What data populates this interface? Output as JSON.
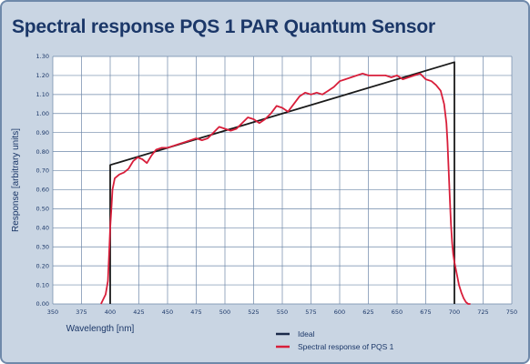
{
  "chart_data": {
    "type": "line",
    "title": "Spectral response PQS 1 PAR Quantum Sensor",
    "xlabel": "Wavelength [nm]",
    "ylabel": "Response [arbitrary units]",
    "xlim": [
      350,
      750
    ],
    "ylim": [
      0,
      1.3
    ],
    "x_ticks": [
      "350",
      "375",
      "400",
      "425",
      "450",
      "475",
      "500",
      "525",
      "550",
      "575",
      "600",
      "625",
      "650",
      "675",
      "700",
      "725",
      "750"
    ],
    "y_ticks": [
      "0.00",
      "0.10",
      "0.20",
      "0.30",
      "0.40",
      "0.50",
      "0.60",
      "0.70",
      "0.80",
      "0.90",
      "1.00",
      "1.10",
      "1.20",
      "1.30"
    ],
    "grid": true,
    "legend_position": "bottom-right",
    "series": [
      {
        "name": "Ideal",
        "color": "#1a1a1a",
        "x": [
          400,
          400,
          700,
          700
        ],
        "y": [
          0.0,
          0.73,
          1.27,
          0.0
        ]
      },
      {
        "name": "Spectral response of PQS 1",
        "color": "#d81e3a",
        "x": [
          392,
          396,
          398,
          399,
          400,
          401,
          402,
          404,
          408,
          412,
          416,
          420,
          424,
          428,
          432,
          436,
          440,
          445,
          450,
          455,
          460,
          465,
          470,
          475,
          480,
          485,
          490,
          495,
          500,
          505,
          510,
          515,
          520,
          525,
          530,
          535,
          540,
          545,
          550,
          555,
          560,
          565,
          570,
          575,
          580,
          585,
          590,
          595,
          600,
          605,
          610,
          615,
          620,
          625,
          630,
          635,
          640,
          645,
          650,
          655,
          660,
          665,
          670,
          675,
          680,
          684,
          688,
          691,
          693,
          694,
          695,
          696,
          697,
          698,
          699,
          700,
          702,
          704,
          706,
          708,
          710,
          712,
          714
        ],
        "y": [
          0.0,
          0.05,
          0.12,
          0.25,
          0.4,
          0.5,
          0.6,
          0.66,
          0.68,
          0.69,
          0.71,
          0.75,
          0.77,
          0.76,
          0.74,
          0.78,
          0.81,
          0.82,
          0.82,
          0.83,
          0.84,
          0.85,
          0.86,
          0.87,
          0.86,
          0.87,
          0.9,
          0.93,
          0.92,
          0.91,
          0.92,
          0.95,
          0.98,
          0.97,
          0.95,
          0.97,
          1.0,
          1.04,
          1.03,
          1.01,
          1.05,
          1.09,
          1.11,
          1.1,
          1.11,
          1.1,
          1.12,
          1.14,
          1.17,
          1.18,
          1.19,
          1.2,
          1.21,
          1.2,
          1.2,
          1.2,
          1.2,
          1.19,
          1.2,
          1.18,
          1.19,
          1.2,
          1.21,
          1.18,
          1.17,
          1.15,
          1.12,
          1.05,
          0.95,
          0.85,
          0.7,
          0.55,
          0.42,
          0.32,
          0.26,
          0.22,
          0.16,
          0.1,
          0.06,
          0.03,
          0.01,
          0.0,
          0.0
        ]
      }
    ]
  }
}
